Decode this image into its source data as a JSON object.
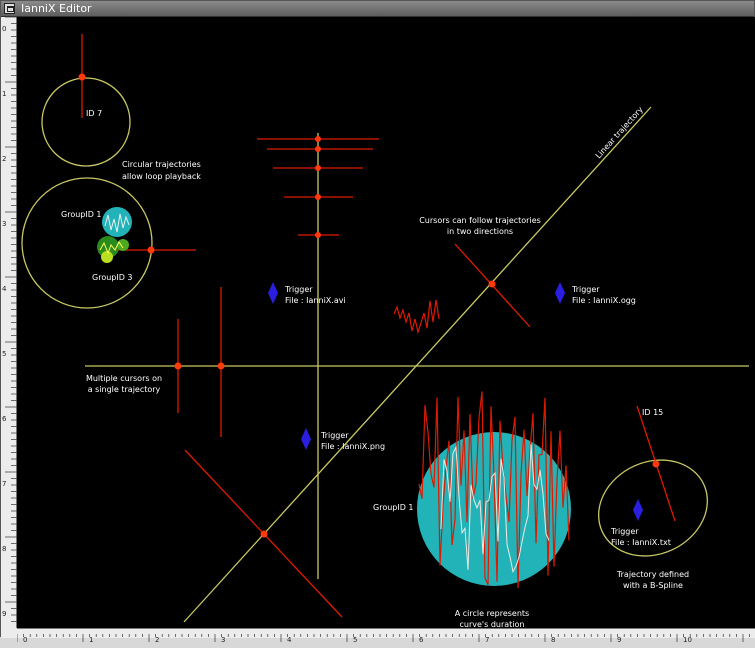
{
  "window": {
    "title": "IanniX Editor"
  },
  "colors": {
    "trajectory": "#c8c864",
    "cursor": "#dd1a00",
    "trigger": "#2a1fe0",
    "circle_fill": "#22b3b8",
    "text": "#ffffff",
    "canvas_bg": "#000000",
    "ruler_bg": "#ececec"
  },
  "rulers": {
    "vertical_ticks": [
      "0",
      "1",
      "2",
      "3",
      "4",
      "5",
      "6",
      "7",
      "8",
      "9"
    ],
    "horizontal_ticks": [
      "0",
      "1",
      "2",
      "3",
      "4",
      "5",
      "6",
      "7",
      "8",
      "9",
      "10"
    ]
  },
  "labels": {
    "id7": "ID 7",
    "circular_1": "Circular trajectories",
    "circular_2": "allow loop playback",
    "groupid1_left": "GroupID 1",
    "groupid3": "GroupID 3",
    "linear": "Linear trajectory",
    "cursors_follow_1": "Cursors can follow trajectories",
    "cursors_follow_2": "in two directions",
    "multiple_1": "Multiple cursors on",
    "multiple_2": "a single trajectory",
    "groupid1_big": "GroupID 1",
    "id15": "ID 15",
    "bspline_1": "Trajectory defined",
    "bspline_2": "with a B-Spline",
    "circle_dur_1": "A circle represents",
    "circle_dur_2": "curve's duration"
  },
  "triggers": [
    {
      "title": "Trigger",
      "file": "File : IanniX.avi"
    },
    {
      "title": "Trigger",
      "file": "File : IanniX.ogg"
    },
    {
      "title": "Trigger",
      "file": "File : IanniX.png"
    },
    {
      "title": "Trigger",
      "file": "File : IanniX.txt"
    }
  ]
}
